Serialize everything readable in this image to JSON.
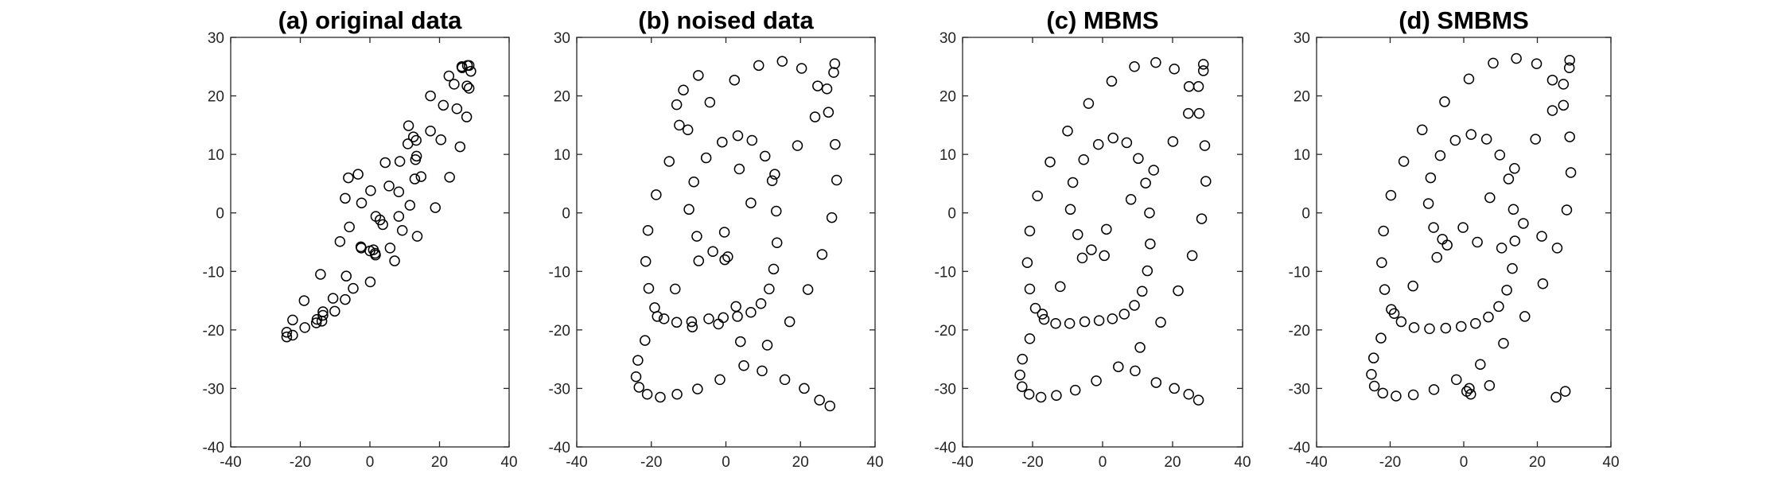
{
  "chart_data": [
    {
      "type": "scatter",
      "title": "(a) original data",
      "xlim": [
        -40,
        40
      ],
      "ylim": [
        -40,
        30
      ],
      "xticks": [
        -40,
        -20,
        0,
        20,
        40
      ],
      "yticks": [
        -40,
        -30,
        -20,
        -10,
        0,
        10,
        20,
        30
      ],
      "marker": "open-circle",
      "color": "#000000",
      "grid": false,
      "legend": "none",
      "x": [
        0.0,
        2.9,
        0.2,
        -3.4,
        -6.2,
        -7.1,
        -5.9,
        -2.6,
        1.5,
        5.8,
        9.3,
        11.5,
        12.9,
        13.4,
        13.3,
        12.5,
        10.9,
        8.6,
        5.5,
        1.7,
        -2.5,
        -6.8,
        -10.6,
        -13.5,
        -15.2,
        -15.4,
        -13.8,
        -10.1,
        -4.8,
        1.6,
        8.3,
        14.7,
        20.4,
        25.0,
        27.9,
        29.0,
        28.5,
        26.4,
        22.7,
        17.4,
        11.1,
        4.4,
        -2.4,
        -8.6,
        -14.2,
        -18.9,
        -22.2,
        -23.9,
        -23.9,
        -22.2,
        -18.7,
        -13.5,
        -7.1,
        0.1,
        7.1,
        13.6,
        18.8,
        22.9,
        25.9,
        27.8,
        28.5,
        28.0,
        26.5,
        24.2,
        21.1,
        17.4,
        13.1,
        8.3,
        3.7,
        1.0
      ],
      "y": [
        -6.5,
        -1.2,
        3.8,
        6.6,
        6.0,
        2.5,
        -2.4,
        -5.8,
        -6.9,
        -6.0,
        -3.0,
        1.3,
        5.8,
        9.7,
        12.4,
        13.0,
        11.8,
        8.8,
        4.6,
        -0.6,
        -6.0,
        -10.8,
        -14.6,
        -16.9,
        -18.2,
        -18.8,
        -18.5,
        -16.8,
        -12.9,
        -7.2,
        -0.6,
        6.2,
        12.5,
        17.8,
        21.7,
        24.2,
        25.2,
        25.0,
        23.4,
        20.0,
        14.9,
        8.6,
        1.7,
        -4.9,
        -10.5,
        -15.0,
        -18.3,
        -20.4,
        -21.2,
        -20.9,
        -19.6,
        -17.5,
        -14.8,
        -11.8,
        -8.2,
        -4.0,
        0.9,
        6.1,
        11.3,
        16.4,
        21.3,
        25.2,
        24.8,
        22.0,
        18.4,
        14.0,
        9.1,
        3.6,
        -2.0,
        -6.3
      ]
    },
    {
      "type": "scatter",
      "title": "(b) noised data",
      "xlim": [
        -40,
        40
      ],
      "ylim": [
        -40,
        30
      ],
      "xticks": [
        -40,
        -20,
        0,
        20,
        40
      ],
      "yticks": [
        -40,
        -30,
        -20,
        -10,
        0,
        10,
        20,
        30
      ],
      "marker": "open-circle",
      "color": "#000000",
      "grid": false,
      "legend": "none",
      "x": [
        0.5,
        -3.5,
        -7.8,
        -9.9,
        -8.6,
        -5.3,
        -1.0,
        3.2,
        7.0,
        10.5,
        12.4,
        13.5,
        13.7,
        12.8,
        11.6,
        9.4,
        6.7,
        3.1,
        -0.7,
        -4.6,
        -9.2,
        -13.2,
        -16.6,
        -19.1,
        -20.7,
        -21.5,
        -20.9,
        -18.7,
        -15.2,
        -10.2,
        -4.3,
        2.3,
        8.8,
        15.1,
        20.3,
        24.6,
        27.5,
        29.3,
        29.7,
        28.4,
        25.8,
        22.0,
        17.1,
        11.1,
        4.8,
        -1.6,
        -7.6,
        -13.1,
        -17.6,
        -21.1,
        -23.3,
        -24.1,
        -23.6,
        -21.7,
        -18.4,
        -13.6,
        -7.3,
        -0.4,
        6.7,
        13.1,
        19.2,
        23.9,
        27.1,
        28.9,
        29.2,
        27.9,
        25.1,
        21.0,
        15.8,
        9.7,
        3.9,
        -0.3,
        3.6,
        2.7,
        -2.0,
        -9.0,
        -12.5,
        -13.2,
        -11.4,
        -7.4
      ],
      "y": [
        -7.5,
        -6.6,
        -4.0,
        0.6,
        5.3,
        9.4,
        12.1,
        13.2,
        12.4,
        9.7,
        5.5,
        0.3,
        -5.1,
        -9.6,
        -13.0,
        -15.5,
        -17.0,
        -17.7,
        -17.9,
        -18.1,
        -18.6,
        -18.7,
        -18.1,
        -16.2,
        -12.9,
        -8.3,
        -3.0,
        3.1,
        8.8,
        14.2,
        18.9,
        22.7,
        25.2,
        25.9,
        24.7,
        21.7,
        17.2,
        11.7,
        5.6,
        -0.8,
        -7.1,
        -13.1,
        -18.6,
        -22.6,
        -26.1,
        -28.5,
        -30.1,
        -31.0,
        -31.5,
        -31.0,
        -29.8,
        -28.0,
        -25.2,
        -21.8,
        -17.7,
        -13.0,
        -8.2,
        -3.3,
        1.7,
        6.6,
        11.5,
        16.4,
        21.2,
        24.0,
        25.5,
        -33.0,
        -32.0,
        -30.0,
        -28.5,
        -27.0,
        -22.0,
        -8.0,
        7.5,
        -16.0,
        -19.0,
        -19.5,
        15.0,
        18.5,
        21.0,
        23.5
      ]
    },
    {
      "type": "scatter",
      "title": "(c) MBMS",
      "xlim": [
        -40,
        40
      ],
      "ylim": [
        -40,
        30
      ],
      "xticks": [
        -40,
        -20,
        0,
        20,
        40
      ],
      "yticks": [
        -40,
        -30,
        -20,
        -10,
        0,
        10,
        20,
        30
      ],
      "marker": "open-circle",
      "color": "#000000",
      "grid": false,
      "legend": "none",
      "x": [
        0.5,
        -3.2,
        -7.1,
        -9.2,
        -8.5,
        -5.4,
        -1.2,
        3.0,
        6.9,
        10.2,
        12.3,
        13.4,
        13.6,
        12.8,
        11.3,
        9.1,
        6.2,
        2.8,
        -1.0,
        -5.1,
        -9.4,
        -13.4,
        -16.7,
        -19.2,
        -20.8,
        -21.5,
        -20.8,
        -18.6,
        -15.0,
        -10.0,
        -4.0,
        2.6,
        9.1,
        15.2,
        20.5,
        24.7,
        27.6,
        29.2,
        29.5,
        28.3,
        25.6,
        21.6,
        16.6,
        10.7,
        4.5,
        -1.8,
        -7.8,
        -13.2,
        -17.6,
        -21.0,
        -23.0,
        -23.6,
        -22.9,
        -20.8,
        -17.2,
        -12.1,
        -5.8,
        1.1,
        8.1,
        14.6,
        20.1,
        24.5,
        27.4,
        28.8,
        28.8,
        27.4,
        24.6,
        20.5,
        15.3,
        9.3
      ],
      "y": [
        -7.3,
        -6.3,
        -3.7,
        0.6,
        5.2,
        9.1,
        11.7,
        12.8,
        12.0,
        9.3,
        5.1,
        0.0,
        -5.3,
        -9.9,
        -13.4,
        -15.8,
        -17.3,
        -18.1,
        -18.4,
        -18.6,
        -18.9,
        -18.9,
        -18.2,
        -16.3,
        -13.0,
        -8.5,
        -3.1,
        2.9,
        8.7,
        14.0,
        18.7,
        22.5,
        25.0,
        25.7,
        24.6,
        21.6,
        17.0,
        11.5,
        5.4,
        -1.0,
        -7.3,
        -13.3,
        -18.7,
        -23.0,
        -26.3,
        -28.7,
        -30.3,
        -31.2,
        -31.5,
        -31.0,
        -29.7,
        -27.7,
        -25.0,
        -21.5,
        -17.3,
        -12.6,
        -7.7,
        -2.8,
        2.3,
        7.3,
        12.2,
        17.0,
        21.6,
        24.3,
        25.4,
        -32.0,
        -31.0,
        -30.0,
        -29.0,
        -27.0
      ]
    },
    {
      "type": "scatter",
      "title": "(d) SMBMS",
      "xlim": [
        -40,
        40
      ],
      "ylim": [
        -40,
        30
      ],
      "xticks": [
        -40,
        -20,
        0,
        20,
        40
      ],
      "yticks": [
        -40,
        -30,
        -20,
        -10,
        0,
        10,
        20,
        30
      ],
      "marker": "open-circle",
      "color": "#000000",
      "grid": false,
      "legend": "none",
      "x": [
        -4.5,
        -5.8,
        -8.2,
        -9.6,
        -9.0,
        -6.4,
        -2.3,
        2.0,
        6.2,
        9.8,
        12.2,
        13.5,
        13.9,
        13.2,
        11.7,
        9.5,
        6.7,
        3.2,
        -0.7,
        -4.9,
        -9.3,
        -13.5,
        -17.0,
        -19.7,
        -21.5,
        -22.3,
        -21.8,
        -19.8,
        -16.3,
        -11.3,
        -5.2,
        1.4,
        8.0,
        14.3,
        19.8,
        24.1,
        27.1,
        28.8,
        29.1,
        28.0,
        25.4,
        21.5,
        16.6,
        10.8,
        4.5,
        -2.0,
        -8.1,
        -13.7,
        -18.4,
        -22.0,
        -24.3,
        -25.1,
        -24.5,
        -22.5,
        -18.9,
        -13.8,
        -7.3,
        -0.2,
        7.1,
        13.8,
        19.5,
        24.1,
        27.1,
        28.7,
        28.8,
        27.6,
        25.1,
        21.2,
        16.2,
        10.3,
        3.7,
        0.8,
        1.9,
        1.5,
        7.0
      ],
      "y": [
        -5.5,
        -4.5,
        -2.5,
        1.6,
        6.0,
        9.8,
        12.4,
        13.4,
        12.6,
        9.9,
        5.8,
        0.6,
        -4.8,
        -9.5,
        -13.2,
        -16.0,
        -17.8,
        -18.9,
        -19.4,
        -19.7,
        -19.8,
        -19.6,
        -18.6,
        -16.5,
        -13.1,
        -8.5,
        -3.1,
        3.0,
        8.8,
        14.2,
        19.0,
        22.9,
        25.6,
        26.4,
        25.5,
        22.7,
        18.4,
        13.0,
        6.9,
        0.5,
        -6.0,
        -12.1,
        -17.7,
        -22.3,
        -25.9,
        -28.5,
        -30.2,
        -31.1,
        -31.3,
        -30.8,
        -29.6,
        -27.6,
        -24.8,
        -21.4,
        -17.2,
        -12.5,
        -7.6,
        -2.5,
        2.6,
        7.6,
        12.6,
        17.5,
        22.0,
        24.8,
        26.1,
        -30.5,
        -31.5,
        -4.0,
        -1.8,
        -6.0,
        -5.0,
        -30.5,
        -31.0,
        -30.0,
        -29.5
      ]
    }
  ]
}
